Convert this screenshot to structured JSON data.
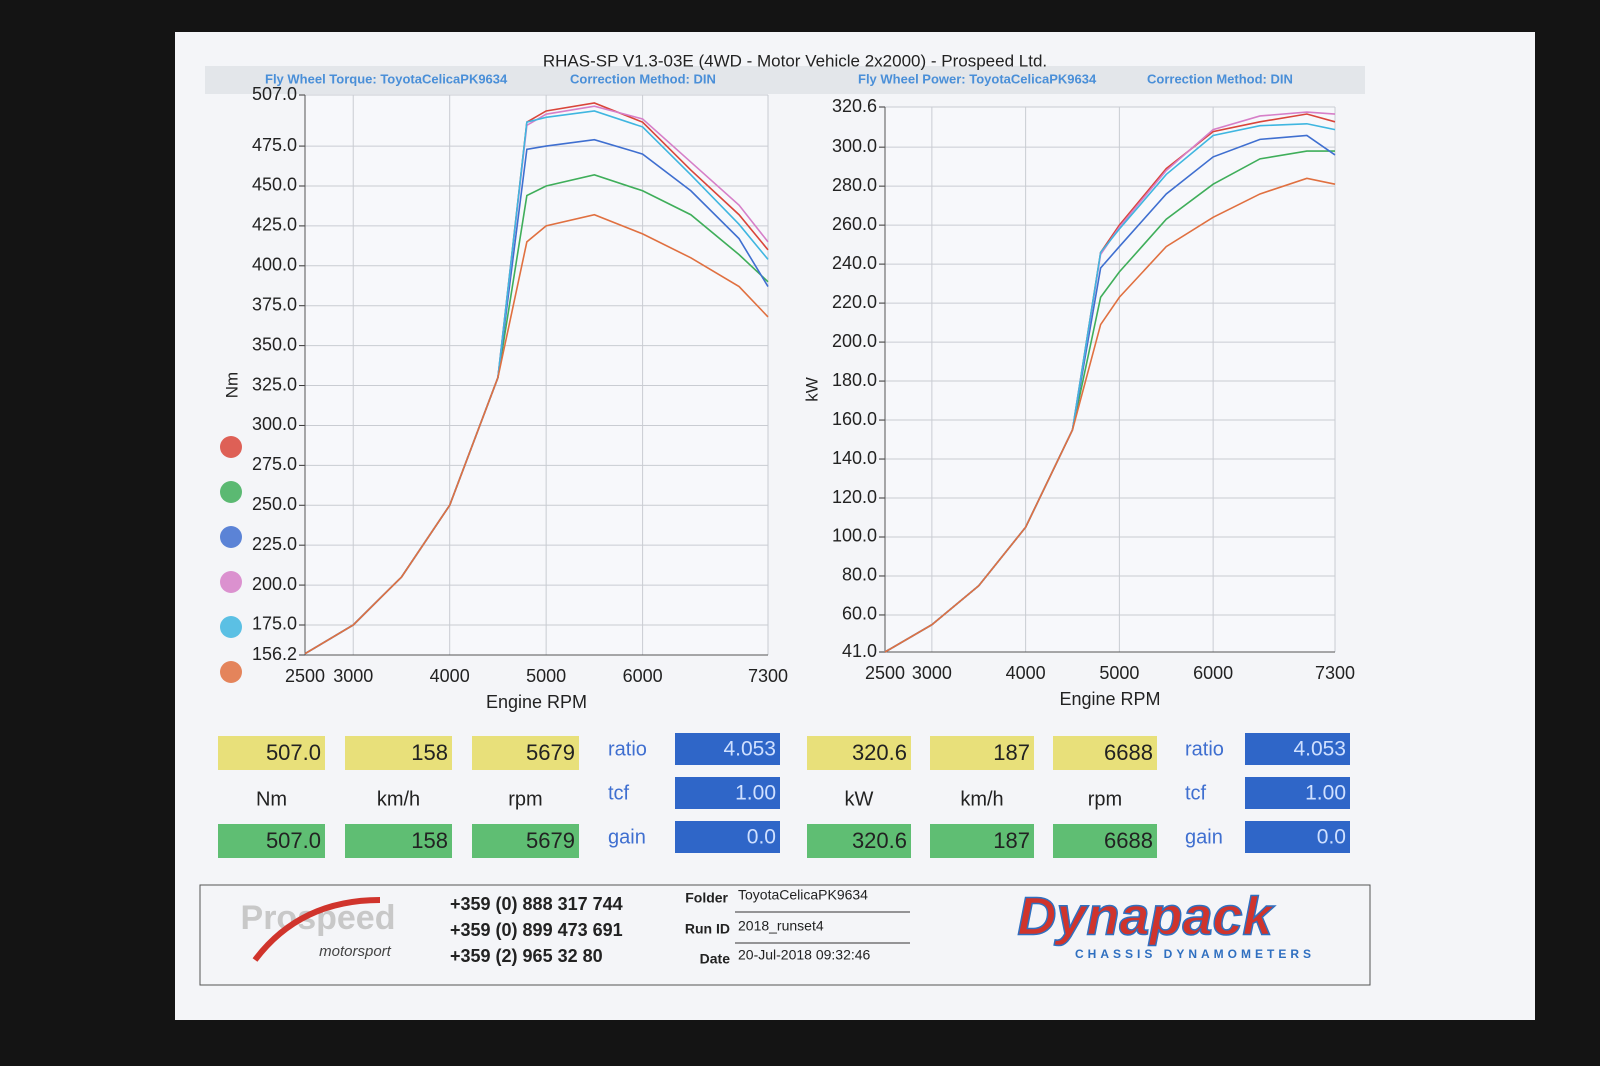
{
  "header": {
    "title": "RHAS-SP V1.3-03E  (4WD - Motor Vehicle 2x2000) - Prospeed Ltd."
  },
  "chart_data": [
    {
      "type": "line",
      "title": "Fly Wheel Torque: ToyotaCelicaPK9634",
      "subtitle": "Correction Method: DIN",
      "x_label": "Engine RPM",
      "y_label": "Nm",
      "x": [
        2500,
        3000,
        3500,
        4000,
        4500,
        4800,
        5000,
        5500,
        6000,
        6500,
        7000,
        7300
      ],
      "xlim": [
        2500,
        7300
      ],
      "xticks": [
        2500,
        3000,
        4000,
        5000,
        6000,
        7300
      ],
      "ylim": [
        156.2,
        507
      ],
      "yticks": [
        156.2,
        {
          "value": 175,
          "label": "175.0"
        },
        {
          "value": 200,
          "label": "200.0"
        },
        {
          "value": 225,
          "label": "225.0"
        },
        {
          "value": 250,
          "label": "250.0"
        },
        {
          "value": 275,
          "label": "275.0"
        },
        {
          "value": 300,
          "label": "300.0"
        },
        {
          "value": 325,
          "label": "325.0"
        },
        {
          "value": 350,
          "label": "350.0"
        },
        {
          "value": 375,
          "label": "375.0"
        },
        {
          "value": 400,
          "label": "400.0"
        },
        {
          "value": 425,
          "label": "425.0"
        },
        {
          "value": 450,
          "label": "450.0"
        },
        {
          "value": 475,
          "label": "475.0"
        },
        {
          "value": 507,
          "label": "507.0"
        }
      ],
      "grid": true,
      "series": [
        {
          "color": "#d9453a",
          "values": [
            157,
            175,
            205,
            250,
            330,
            490,
            497,
            502,
            490,
            460,
            432,
            410
          ]
        },
        {
          "color": "#3fae5a",
          "values": [
            157,
            175,
            205,
            250,
            330,
            444,
            450,
            457,
            447,
            432,
            407,
            390
          ]
        },
        {
          "color": "#3f6fd0",
          "values": [
            157,
            175,
            205,
            250,
            330,
            473,
            475,
            479,
            470,
            447,
            417,
            387
          ]
        },
        {
          "color": "#d67fc8",
          "values": [
            157,
            175,
            205,
            250,
            330,
            488,
            495,
            500,
            492,
            465,
            438,
            415
          ]
        },
        {
          "color": "#3fb6e0",
          "values": [
            157,
            175,
            205,
            250,
            330,
            490,
            493,
            497,
            487,
            457,
            426,
            404
          ]
        },
        {
          "color": "#e07040",
          "values": [
            157,
            175,
            205,
            250,
            330,
            415,
            425,
            432,
            420,
            405,
            387,
            368
          ]
        }
      ]
    },
    {
      "type": "line",
      "title": "Fly Wheel Power: ToyotaCelicaPK9634",
      "subtitle": "Correction Method: DIN",
      "x_label": "Engine RPM",
      "y_label": "kW",
      "x": [
        2500,
        3000,
        3500,
        4000,
        4500,
        4800,
        5000,
        5500,
        6000,
        6500,
        7000,
        7300
      ],
      "xlim": [
        2500,
        7300
      ],
      "xticks": [
        2500,
        3000,
        4000,
        5000,
        6000,
        7300
      ],
      "ylim": [
        41,
        320.6
      ],
      "yticks": [
        {
          "value": 41,
          "label": "41.0"
        },
        {
          "value": 60,
          "label": "60.0"
        },
        {
          "value": 80,
          "label": "80.0"
        },
        {
          "value": 100,
          "label": "100.0"
        },
        {
          "value": 120,
          "label": "120.0"
        },
        {
          "value": 140,
          "label": "140.0"
        },
        {
          "value": 160,
          "label": "160.0"
        },
        {
          "value": 180,
          "label": "180.0"
        },
        {
          "value": 200,
          "label": "200.0"
        },
        {
          "value": 220,
          "label": "220.0"
        },
        {
          "value": 240,
          "label": "240.0"
        },
        {
          "value": 260,
          "label": "260.0"
        },
        {
          "value": 280,
          "label": "280.0"
        },
        {
          "value": 300,
          "label": "300.0"
        },
        320.6
      ],
      "grid": true,
      "series": [
        {
          "color": "#d9453a",
          "values": [
            41,
            55,
            75,
            105,
            155,
            246,
            260,
            289,
            308,
            313,
            317,
            313
          ]
        },
        {
          "color": "#3fae5a",
          "values": [
            41,
            55,
            75,
            105,
            155,
            223,
            236,
            263,
            281,
            294,
            298,
            298
          ]
        },
        {
          "color": "#3f6fd0",
          "values": [
            41,
            55,
            75,
            105,
            155,
            238,
            249,
            276,
            295,
            304,
            306,
            296
          ]
        },
        {
          "color": "#d67fc8",
          "values": [
            41,
            55,
            75,
            105,
            155,
            245,
            259,
            288,
            309,
            316,
            318,
            317
          ]
        },
        {
          "color": "#3fb6e0",
          "values": [
            41,
            55,
            75,
            105,
            155,
            246,
            258,
            286,
            306,
            311,
            312,
            309
          ]
        },
        {
          "color": "#e07040",
          "values": [
            41,
            55,
            75,
            105,
            155,
            209,
            223,
            249,
            264,
            276,
            284,
            281
          ]
        }
      ]
    }
  ],
  "readouts": [
    {
      "top": [
        "507.0",
        "158",
        "5679"
      ],
      "units": [
        "Nm",
        "km/h",
        "rpm"
      ],
      "bottom": [
        "507.0",
        "158",
        "5679"
      ],
      "params": [
        {
          "label": "ratio",
          "value": "4.053"
        },
        {
          "label": "tcf",
          "value": "1.00"
        },
        {
          "label": "gain",
          "value": "0.0"
        }
      ]
    },
    {
      "top": [
        "320.6",
        "187",
        "6688"
      ],
      "units": [
        "kW",
        "km/h",
        "rpm"
      ],
      "bottom": [
        "320.6",
        "187",
        "6688"
      ],
      "params": [
        {
          "label": "ratio",
          "value": "4.053"
        },
        {
          "label": "tcf",
          "value": "1.00"
        },
        {
          "label": "gain",
          "value": "0.0"
        }
      ]
    }
  ],
  "footer": {
    "logo": "Prospeed",
    "logo_sub": "motorsport",
    "phones": [
      "+359 (0) 888 317 744",
      "+359 (0) 899 473 691",
      "+359 (2) 965 32 80"
    ],
    "fields": [
      {
        "label": "Folder",
        "value": "ToyotaCelicaPK9634"
      },
      {
        "label": "Run ID",
        "value": "2018_runset4"
      },
      {
        "label": "Date",
        "value": "20-Jul-2018  09:32:46"
      }
    ],
    "brand": "Dynapack",
    "brand_sub": "CHASSIS DYNAMOMETERS"
  }
}
